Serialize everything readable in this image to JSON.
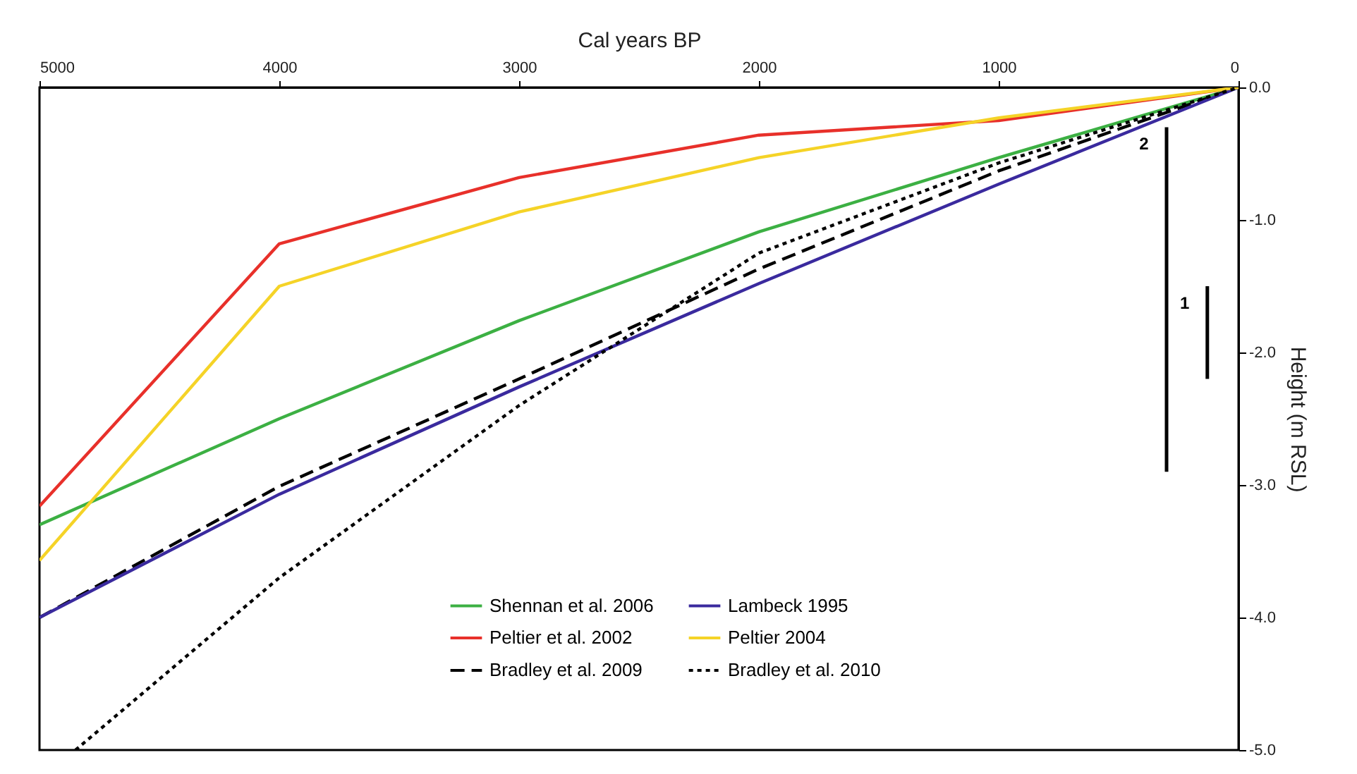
{
  "chart_data": {
    "type": "line",
    "xlabel": "Cal years BP",
    "ylabel": "Height (m RSL)",
    "xlim": [
      5000,
      0
    ],
    "xticks": [
      5000,
      4000,
      3000,
      2000,
      1000,
      0
    ],
    "ylim": [
      -5,
      0
    ],
    "yticks": [
      {
        "value": 0,
        "label": "0.0"
      },
      {
        "value": -1,
        "label": "-1.0"
      },
      {
        "value": -2,
        "label": "-2.0"
      },
      {
        "value": -3,
        "label": "-3.0"
      },
      {
        "value": -4,
        "label": "-4.0"
      },
      {
        "value": -5,
        "label": "-5.0"
      }
    ],
    "grid": false,
    "legend": "bottom",
    "marker": "none",
    "series": [
      {
        "name": "Shennan et al. 2006",
        "color": "#3cb043",
        "x": [
          5000,
          4000,
          3000,
          2000,
          1000,
          0
        ],
        "values": [
          -3.3,
          -2.5,
          -1.76,
          -1.09,
          -0.53,
          0
        ],
        "line_style": "solid"
      },
      {
        "name": "Peltier et al. 2002",
        "color": "#e8302a",
        "x": [
          5000,
          4000,
          3000,
          2000,
          1000,
          0
        ],
        "values": [
          -3.16,
          -1.18,
          -0.68,
          -0.36,
          -0.25,
          0
        ],
        "line_style": "solid"
      },
      {
        "name": "Bradley et al. 2009",
        "color": "#000000",
        "x": [
          5000,
          4000,
          3000,
          2000,
          1000,
          0
        ],
        "values": [
          -4.0,
          -3.01,
          -2.2,
          -1.37,
          -0.63,
          0
        ],
        "line_style": "dashed"
      },
      {
        "name": "Lambeck 1995",
        "color": "#3a2a9e",
        "x": [
          5000,
          4000,
          3000,
          2000,
          1000,
          0
        ],
        "values": [
          -4.0,
          -3.07,
          -2.26,
          -1.48,
          -0.73,
          0
        ],
        "line_style": "solid"
      },
      {
        "name": "Peltier 2004",
        "color": "#f5d327",
        "x": [
          5000,
          4000,
          3000,
          2000,
          1000,
          0
        ],
        "values": [
          -3.57,
          -1.5,
          -0.94,
          -0.53,
          -0.23,
          0
        ],
        "line_style": "solid"
      },
      {
        "name": "Bradley et al. 2010",
        "color": "#000000",
        "x": [
          4850,
          4000,
          3000,
          2000,
          1000,
          0
        ],
        "values": [
          -5.0,
          -3.7,
          -2.4,
          -1.25,
          -0.57,
          0
        ],
        "line_style": "dotted"
      },
      {
        "color": "#000000",
        "x": [
          300,
          300
        ],
        "values": [
          -0.3,
          -2.9
        ],
        "line_style": "solid"
      },
      {
        "color": "#000000",
        "x": [
          130,
          130
        ],
        "values": [
          -1.5,
          -2.2
        ],
        "line_style": "solid"
      }
    ],
    "annotations": [
      {
        "text": "2",
        "x": 300,
        "y": -0.3
      },
      {
        "text": "1",
        "x": 130,
        "y": -1.5
      }
    ]
  }
}
